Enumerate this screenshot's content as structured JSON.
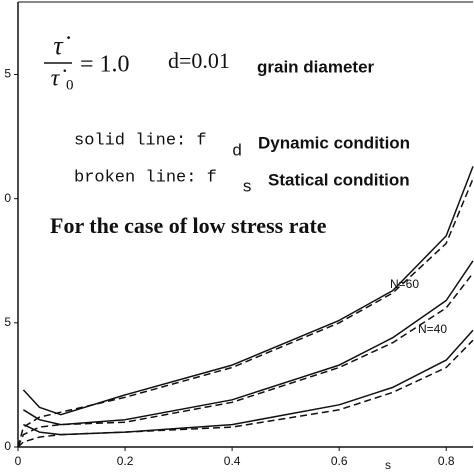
{
  "chart_data": {
    "type": "line",
    "rate_ratio": {
      "numerator": "τ̇",
      "denominator": "τ̇",
      "denominator_sub": "0",
      "equals": "= 1.0"
    },
    "diameter": "d=0.01",
    "diameter_label": "grain diameter",
    "solid_line": {
      "prefix": "solid line: f",
      "sub": "d",
      "label": "Dynamic condition"
    },
    "broken_line": {
      "prefix": "broken line: f",
      "sub": "s",
      "label": "Statical condition"
    },
    "title": "For the case of low stress rate",
    "annotations": [
      "N=60",
      "N=40"
    ],
    "x_label": "s",
    "x": [
      0,
      0.01,
      0.04,
      0.08,
      0.2,
      0.4,
      0.6,
      0.7,
      0.8,
      0.85
    ],
    "series": [
      {
        "color": "#111",
        "dash": false,
        "values": [
          null,
          2.3,
          1.6,
          1.3,
          2.1,
          3.3,
          5.1,
          6.3,
          8.5,
          11.3
        ]
      },
      {
        "color": "#111",
        "dash": true,
        "values": [
          0,
          0.8,
          1.2,
          1.4,
          2.0,
          3.2,
          5.0,
          6.2,
          8.2,
          10.8
        ]
      },
      {
        "color": "#111",
        "dash": false,
        "values": [
          null,
          1.5,
          1.1,
          0.9,
          1.1,
          1.9,
          3.3,
          4.4,
          5.9,
          7.5
        ]
      },
      {
        "color": "#111",
        "dash": true,
        "values": [
          0,
          0.5,
          0.8,
          0.9,
          1.0,
          1.8,
          3.2,
          4.2,
          5.6,
          7.0
        ]
      },
      {
        "color": "#111",
        "dash": false,
        "values": [
          null,
          0.9,
          0.6,
          0.5,
          0.6,
          0.9,
          1.7,
          2.4,
          3.5,
          4.7
        ]
      },
      {
        "color": "#111",
        "dash": true,
        "values": [
          0,
          0.2,
          0.4,
          0.5,
          0.6,
          0.8,
          1.5,
          2.2,
          3.2,
          4.3
        ]
      }
    ],
    "xlim": [
      0,
      0.85
    ],
    "ylim": [
      0,
      18
    ],
    "xticks": [
      0,
      0.2,
      0.4,
      0.6,
      0.8
    ],
    "yticks": [
      0,
      5,
      {
        "value": 10,
        "label": "0"
      },
      {
        "value": 15,
        "label": "5"
      }
    ]
  }
}
